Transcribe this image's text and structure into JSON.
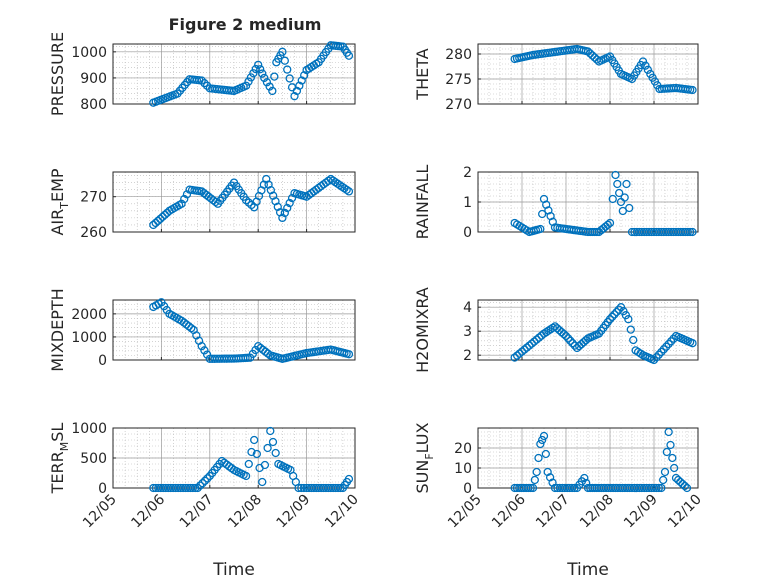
{
  "figure_title": "Figure 2 medium",
  "x_tick_labels": [
    "12/05",
    "12/06",
    "12/07",
    "12/08",
    "12/09",
    "12/10"
  ],
  "colors": {
    "marker": "#0072BD",
    "axes": "#262626",
    "grid": "#b8b8b8",
    "background": "#ffffff"
  },
  "chart_data": [
    {
      "type": "scatter",
      "ylabel": "PRESSURE",
      "xlabel": "",
      "ylim": [
        800,
        1030
      ],
      "yticks": [
        800,
        900,
        1000
      ],
      "grid": true,
      "x": [
        "12/05 20:00",
        "12/06 08:00",
        "12/06 14:00",
        "12/06 20:00",
        "12/07 00:00",
        "12/07 12:00",
        "12/07 18:00",
        "12/08 00:00",
        "12/08 03:00",
        "12/08 07:00",
        "12/08 09:00",
        "12/08 12:00",
        "12/08 18:00",
        "12/09 00:00",
        "12/09 06:00",
        "12/09 12:00",
        "12/09 18:00",
        "12/09 21:00"
      ],
      "values": [
        805,
        840,
        895,
        890,
        860,
        850,
        870,
        950,
        900,
        850,
        960,
        1000,
        830,
        930,
        960,
        1025,
        1020,
        985
      ]
    },
    {
      "type": "scatter",
      "ylabel": "THETA",
      "xlabel": "",
      "ylim": [
        270,
        282
      ],
      "yticks": [
        270,
        275,
        280
      ],
      "grid": true,
      "x": [
        "12/05 20:00",
        "12/06 06:00",
        "12/06 18:00",
        "12/07 06:00",
        "12/07 12:00",
        "12/07 18:00",
        "12/08 00:00",
        "12/08 06:00",
        "12/08 12:00",
        "12/08 18:00",
        "12/08 22:00",
        "12/09 03:00",
        "12/09 12:00",
        "12/09 21:00"
      ],
      "values": [
        279,
        279.8,
        280.4,
        281,
        280.5,
        278.5,
        279.5,
        276,
        275,
        278.5,
        276,
        273,
        273.2,
        272.8
      ]
    },
    {
      "type": "scatter",
      "ylabel": "AIR_TEMP",
      "xlabel": "",
      "ylim": [
        260,
        277
      ],
      "yticks": [
        260,
        270
      ],
      "grid": true,
      "x": [
        "12/05 20:00",
        "12/06 04:00",
        "12/06 10:00",
        "12/06 14:00",
        "12/06 20:00",
        "12/07 04:00",
        "12/07 12:00",
        "12/07 18:00",
        "12/07 22:00",
        "12/08 04:00",
        "12/08 12:00",
        "12/08 18:00",
        "12/09 00:00",
        "12/09 12:00",
        "12/09 21:00"
      ],
      "values": [
        262,
        266,
        268,
        272,
        271.5,
        268,
        274,
        269,
        267,
        275,
        264,
        271,
        270,
        275,
        271.5
      ]
    },
    {
      "type": "scatter",
      "ylabel": "RAINFALL",
      "xlabel": "",
      "ylim": [
        0,
        2
      ],
      "yticks": [
        0,
        1,
        2
      ],
      "grid": true,
      "x": [
        "12/05 20:00",
        "12/06 04:00",
        "12/06 10:00",
        "12/06 12:00",
        "12/06 18:00",
        "12/07 12:00",
        "12/07 18:00",
        "12/08 00:00",
        "12/08 03:00",
        "12/08 05:00",
        "12/08 07:00",
        "12/08 09:00",
        "12/08 12:00",
        "12/09 12:00",
        "12/09 21:00"
      ],
      "values": [
        0.3,
        0,
        0.1,
        1.1,
        0.15,
        0,
        0,
        0.3,
        1.9,
        1.3,
        0.7,
        1.6,
        0,
        0,
        0
      ]
    },
    {
      "type": "scatter",
      "ylabel": "MIXDEPTH",
      "xlabel": "",
      "ylim": [
        0,
        2600
      ],
      "yticks": [
        0,
        1000,
        2000
      ],
      "grid": true,
      "x": [
        "12/05 20:00",
        "12/06 00:00",
        "12/06 04:00",
        "12/06 10:00",
        "12/06 16:00",
        "12/06 20:00",
        "12/07 00:00",
        "12/07 12:00",
        "12/07 20:00",
        "12/08 00:00",
        "12/08 06:00",
        "12/08 12:00",
        "12/09 00:00",
        "12/09 12:00",
        "12/09 21:00"
      ],
      "values": [
        2300,
        2500,
        2000,
        1700,
        1300,
        600,
        50,
        60,
        100,
        600,
        200,
        50,
        300,
        450,
        250
      ]
    },
    {
      "type": "scatter",
      "ylabel": "H2OMIXRA",
      "xlabel": "",
      "ylim": [
        1.8,
        4.3
      ],
      "yticks": [
        2,
        3,
        4
      ],
      "grid": true,
      "x": [
        "12/05 20:00",
        "12/06 04:00",
        "12/06 12:00",
        "12/06 18:00",
        "12/07 00:00",
        "12/07 06:00",
        "12/07 12:00",
        "12/07 18:00",
        "12/08 00:00",
        "12/08 06:00",
        "12/08 10:00",
        "12/08 14:00",
        "12/08 18:00",
        "12/09 00:00",
        "12/09 12:00",
        "12/09 21:00"
      ],
      "values": [
        1.9,
        2.4,
        2.9,
        3.2,
        2.8,
        2.3,
        2.7,
        2.9,
        3.5,
        4.0,
        3.5,
        2.2,
        2.0,
        1.8,
        2.8,
        2.5
      ]
    },
    {
      "type": "scatter",
      "ylabel": "TERR_MSL",
      "xlabel": "Time",
      "ylim": [
        0,
        1000
      ],
      "yticks": [
        0,
        500,
        1000
      ],
      "grid": true,
      "x": [
        "12/05 20:00",
        "12/06 12:00",
        "12/06 18:00",
        "12/07 00:00",
        "12/07 06:00",
        "12/07 12:00",
        "12/07 18:00",
        "12/07 22:00",
        "12/08 02:00",
        "12/08 06:00",
        "12/08 10:00",
        "12/08 16:00",
        "12/08 20:00",
        "12/09 00:00",
        "12/09 12:00",
        "12/09 18:00",
        "12/09 21:00"
      ],
      "values": [
        0,
        0,
        0,
        200,
        450,
        300,
        200,
        800,
        100,
        950,
        400,
        300,
        0,
        0,
        0,
        0,
        150
      ]
    },
    {
      "type": "scatter",
      "ylabel": "SUN_FLUX",
      "xlabel": "Time",
      "ylim": [
        0,
        30
      ],
      "yticks": [
        0,
        10,
        20
      ],
      "grid": true,
      "x": [
        "12/05 20:00",
        "12/06 06:00",
        "12/06 08:00",
        "12/06 10:00",
        "12/06 12:00",
        "12/06 14:00",
        "12/06 18:00",
        "12/07 06:00",
        "12/07 10:00",
        "12/07 12:00",
        "12/07 18:00",
        "12/08 12:00",
        "12/09 04:00",
        "12/09 06:00",
        "12/09 08:00",
        "12/09 10:00",
        "12/09 12:00",
        "12/09 18:00"
      ],
      "values": [
        0,
        0,
        8,
        22,
        26,
        8,
        0,
        0,
        5,
        0,
        0,
        0,
        0,
        8,
        28,
        15,
        5,
        0
      ]
    }
  ]
}
